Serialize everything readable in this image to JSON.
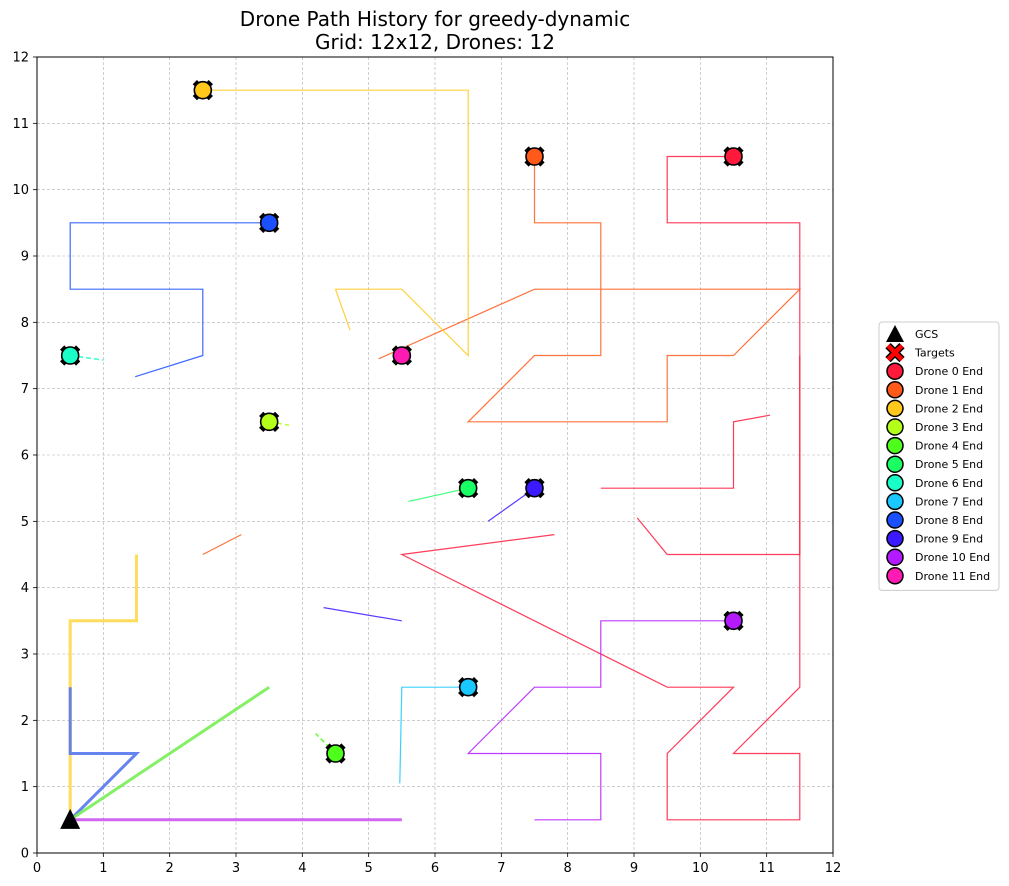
{
  "chart_data": {
    "type": "line",
    "title_line1": "Drone Path History for greedy-dynamic",
    "title_line2": "Grid: 12x12, Drones: 12",
    "xlim": [
      0,
      12
    ],
    "ylim": [
      0,
      12
    ],
    "xticks": [
      "0",
      "1",
      "2",
      "3",
      "4",
      "5",
      "6",
      "7",
      "8",
      "9",
      "10",
      "11",
      "12"
    ],
    "yticks": [
      "0",
      "1",
      "2",
      "3",
      "4",
      "5",
      "6",
      "7",
      "8",
      "9",
      "10",
      "11",
      "12"
    ],
    "grid": true,
    "legend_position": "right",
    "gcs": {
      "name": "GCS",
      "x": 0.5,
      "y": 0.5,
      "color": "#000000"
    },
    "targets_label": "Targets",
    "targets_color": "#ff0000",
    "thick_segments": [
      {
        "color": "#ffd84a",
        "points": [
          [
            0.5,
            0.5
          ],
          [
            0.5,
            3.5
          ],
          [
            1.5,
            3.5
          ],
          [
            1.5,
            4.5
          ]
        ]
      },
      {
        "color": "#5577ee",
        "points": [
          [
            0.5,
            2.5
          ],
          [
            0.5,
            1.5
          ],
          [
            1.5,
            1.5
          ],
          [
            0.5,
            0.5
          ]
        ]
      },
      {
        "color": "#77ee55",
        "points": [
          [
            0.5,
            0.5
          ],
          [
            3.5,
            2.5
          ]
        ]
      },
      {
        "color": "#cc55ee",
        "points": [
          [
            0.5,
            0.5
          ],
          [
            5.5,
            0.5
          ]
        ]
      }
    ],
    "series": [
      {
        "name": "Drone 0 End",
        "color": "#ff1a3c",
        "end": [
          10.5,
          10.5
        ],
        "paths": [
          [
            [
              10.5,
              10.5
            ],
            [
              9.5,
              10.5
            ],
            [
              9.5,
              9.5
            ],
            [
              11.5,
              9.5
            ],
            [
              11.5,
              4.5
            ],
            [
              9.5,
              4.5
            ],
            [
              9.05,
              5.05
            ]
          ],
          [
            [
              11.5,
              7.5
            ],
            [
              11.5,
              2.5
            ],
            [
              10.5,
              1.5
            ],
            [
              11.5,
              1.5
            ],
            [
              11.5,
              0.5
            ],
            [
              9.5,
              0.5
            ],
            [
              9.5,
              1.5
            ],
            [
              10.5,
              2.5
            ],
            [
              9.5,
              2.5
            ],
            [
              5.5,
              4.5
            ],
            [
              7.8,
              4.8
            ]
          ],
          [
            [
              8.5,
              5.5
            ],
            [
              10.5,
              5.5
            ],
            [
              10.5,
              6.5
            ],
            [
              11.05,
              6.6
            ]
          ]
        ]
      },
      {
        "name": "Drone 1 End",
        "color": "#ff5a1a",
        "end": [
          7.5,
          10.5
        ],
        "paths": [
          [
            [
              7.5,
              10.5
            ],
            [
              7.5,
              9.5
            ],
            [
              8.5,
              9.5
            ],
            [
              8.5,
              7.5
            ],
            [
              7.5,
              7.5
            ],
            [
              6.5,
              6.5
            ],
            [
              9.5,
              6.5
            ],
            [
              9.5,
              7.5
            ],
            [
              10.5,
              7.5
            ],
            [
              11.5,
              8.5
            ],
            [
              7.5,
              8.5
            ],
            [
              5.15,
              7.45
            ]
          ],
          [
            [
              2.5,
              4.5
            ],
            [
              3.08,
              4.8
            ]
          ]
        ]
      },
      {
        "name": "Drone 2 End",
        "color": "#ffc81a",
        "end": [
          2.5,
          11.5
        ],
        "paths": [
          [
            [
              2.5,
              11.5
            ],
            [
              6.5,
              11.5
            ],
            [
              6.5,
              7.5
            ],
            [
              5.5,
              8.5
            ],
            [
              4.5,
              8.5
            ],
            [
              4.72,
              7.88
            ]
          ]
        ]
      },
      {
        "name": "Drone 3 End",
        "color": "#b4ff1a",
        "end": [
          3.5,
          6.5
        ],
        "paths": [
          [
            [
              3.5,
              6.5
            ],
            [
              3.8,
              6.45
            ]
          ]
        ]
      },
      {
        "name": "Drone 4 End",
        "color": "#4dff1a",
        "end": [
          4.5,
          1.5
        ],
        "paths": [
          [
            [
              4.5,
              1.5
            ],
            [
              4.2,
              1.8
            ]
          ]
        ]
      },
      {
        "name": "Drone 5 End",
        "color": "#1aff64",
        "end": [
          6.5,
          5.5
        ],
        "paths": [
          [
            [
              6.5,
              5.5
            ],
            [
              5.6,
              5.3
            ]
          ]
        ]
      },
      {
        "name": "Drone 6 End",
        "color": "#1affc8",
        "end": [
          0.5,
          7.5
        ],
        "paths": [
          [
            [
              0.5,
              7.5
            ],
            [
              1.0,
              7.43
            ]
          ]
        ]
      },
      {
        "name": "Drone 7 End",
        "color": "#1ac8ff",
        "end": [
          6.5,
          2.5
        ],
        "paths": [
          [
            [
              6.5,
              2.5
            ],
            [
              5.5,
              2.5
            ],
            [
              5.47,
              1.05
            ]
          ]
        ]
      },
      {
        "name": "Drone 8 End",
        "color": "#1a50ff",
        "end": [
          3.5,
          9.5
        ],
        "paths": [
          [
            [
              3.5,
              9.5
            ],
            [
              0.5,
              9.5
            ],
            [
              0.5,
              8.5
            ],
            [
              2.5,
              8.5
            ],
            [
              2.5,
              7.5
            ],
            [
              1.48,
              7.18
            ]
          ]
        ]
      },
      {
        "name": "Drone 9 End",
        "color": "#3c1aff",
        "end": [
          7.5,
          5.5
        ],
        "paths": [
          [
            [
              7.5,
              5.5
            ],
            [
              6.8,
              5.0
            ]
          ],
          [
            [
              5.5,
              3.5
            ],
            [
              4.32,
              3.7
            ]
          ]
        ]
      },
      {
        "name": "Drone 10 End",
        "color": "#b41aff",
        "end": [
          10.5,
          3.5
        ],
        "paths": [
          [
            [
              10.5,
              3.5
            ],
            [
              8.5,
              3.5
            ],
            [
              8.5,
              2.5
            ],
            [
              7.5,
              2.5
            ],
            [
              6.5,
              1.5
            ],
            [
              8.5,
              1.5
            ],
            [
              8.5,
              0.5
            ],
            [
              7.5,
              0.5
            ]
          ]
        ]
      },
      {
        "name": "Drone 11 End",
        "color": "#ff1ab4",
        "end": [
          5.5,
          7.5
        ],
        "paths": []
      }
    ]
  }
}
